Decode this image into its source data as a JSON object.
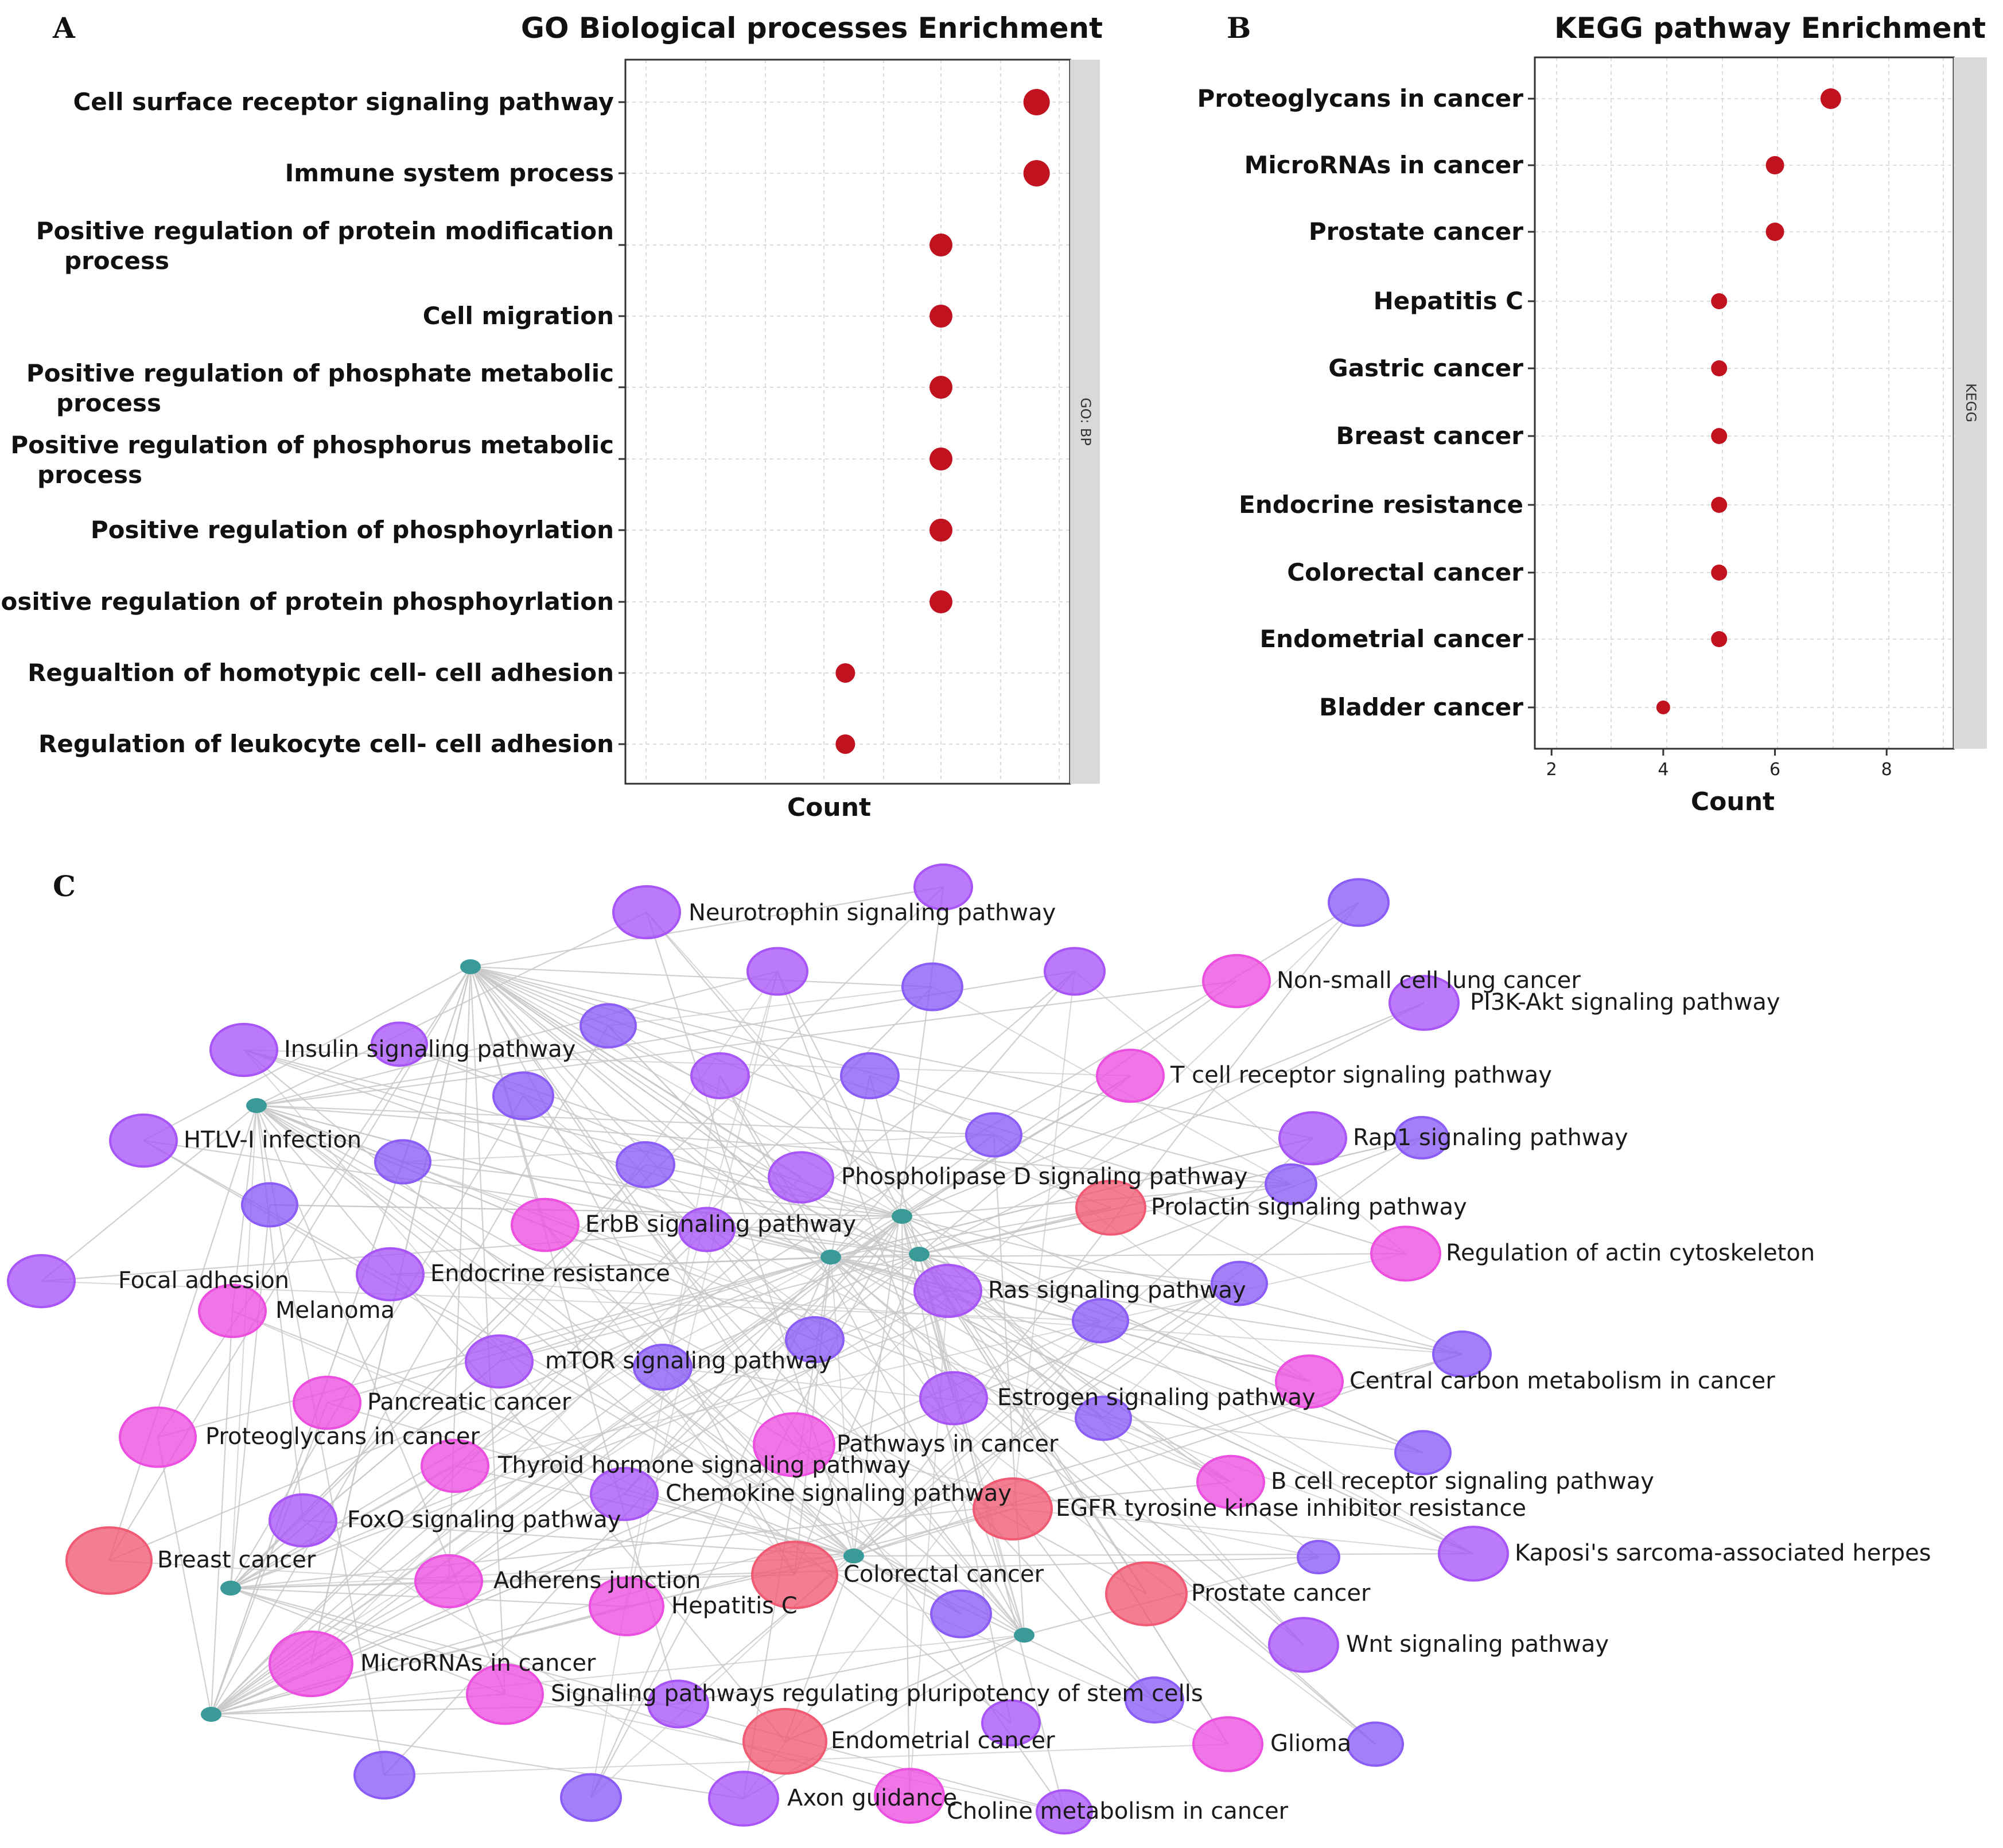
{
  "panels": {
    "a": "A",
    "b": "B",
    "c": "C"
  },
  "colors": {
    "dot": "#c1121f",
    "strip": "#d9d9d9",
    "grid": "#dcdcdc",
    "edge": "#c8c8c8",
    "node_violet": "#a855f7",
    "node_blueviolet": "#8b5cf6",
    "node_pink": "#ec4fe0",
    "node_red": "#f05a72",
    "node_teal": "#3a9a98"
  },
  "chart_data": [
    {
      "id": "go",
      "type": "scatter",
      "title": "GO Biological processes Enrichment",
      "xlabel": "Count",
      "facet": "GO: BP",
      "xlim": [
        3.7,
        8.35
      ],
      "xticks": [],
      "categories": [
        [
          "Cell surface receptor signaling pathway"
        ],
        [
          "Immune system process"
        ],
        [
          "Positive regulation of protein modification",
          "process"
        ],
        [
          "Cell migration"
        ],
        [
          "Positive regulation of phosphate metabolic",
          "process"
        ],
        [
          "Positive regulation of phosphorus metabolic",
          "process"
        ],
        [
          "Positive regulation of phosphoyrlation"
        ],
        [
          "Positive regulation of protein phosphoyrlation"
        ],
        [
          "Regualtion of homotypic cell- cell adhesion"
        ],
        [
          "Regulation of leukocyte cell- cell adhesion"
        ]
      ],
      "values": [
        8,
        8,
        7,
        7,
        7,
        7,
        7,
        7,
        6,
        6
      ]
    },
    {
      "id": "kegg",
      "type": "scatter",
      "title": "KEGG pathway Enrichment",
      "xlabel": "Count",
      "facet": "KEGG",
      "xlim": [
        1.7,
        9.2
      ],
      "xticks": [
        2,
        4,
        6,
        8
      ],
      "categories": [
        [
          "Proteoglycans in cancer"
        ],
        [
          "MicroRNAs in cancer"
        ],
        [
          "Prostate cancer"
        ],
        [
          "Hepatitis C"
        ],
        [
          "Gastric cancer"
        ],
        [
          "Breast cancer"
        ],
        [
          "Endocrine resistance"
        ],
        [
          "Colorectal cancer"
        ],
        [
          "Endometrial cancer"
        ],
        [
          "Bladder cancer"
        ]
      ],
      "values": [
        7,
        6,
        6,
        5,
        5,
        5,
        5,
        5,
        5,
        4
      ]
    },
    {
      "id": "network",
      "type": "network",
      "labels": [
        "Neurotrophin signaling pathway",
        "Non-small cell lung cancer",
        "PI3K-Akt signaling pathway",
        "Insulin signaling pathway",
        "T cell receptor signaling pathway",
        "HTLV-I infection",
        "Rap1 signaling pathway",
        "Phospholipase D signaling pathway",
        "ErbB signaling pathway",
        "Prolactin signaling pathway",
        "Regulation of actin cytoskeleton",
        "Focal adhesion",
        "Endocrine resistance",
        "Melanoma",
        "Ras signaling pathway",
        "mTOR signaling pathway",
        "Central carbon metabolism in cancer",
        "Pancreatic cancer",
        "Estrogen signaling pathway",
        "Proteoglycans in cancer",
        "Pathways in cancer",
        "Thyroid hormone signaling pathway",
        "B cell receptor signaling pathway",
        "Chemokine signaling pathway",
        "EGFR tyrosine kinase inhibitor resistance",
        "FoxO signaling pathway",
        "Kaposi's sarcoma-associated herpes",
        "Breast cancer",
        "Colorectal cancer",
        "Adherens junction",
        "Hepatitis C",
        "Prostate cancer",
        "Wnt signaling pathway",
        "MicroRNAs in cancer",
        "Signaling pathways regulating pluripotency of stem cells",
        "Endometrial cancer",
        "Glioma",
        "Axon guidance",
        "Choline metabolism in cancer"
      ]
    }
  ]
}
